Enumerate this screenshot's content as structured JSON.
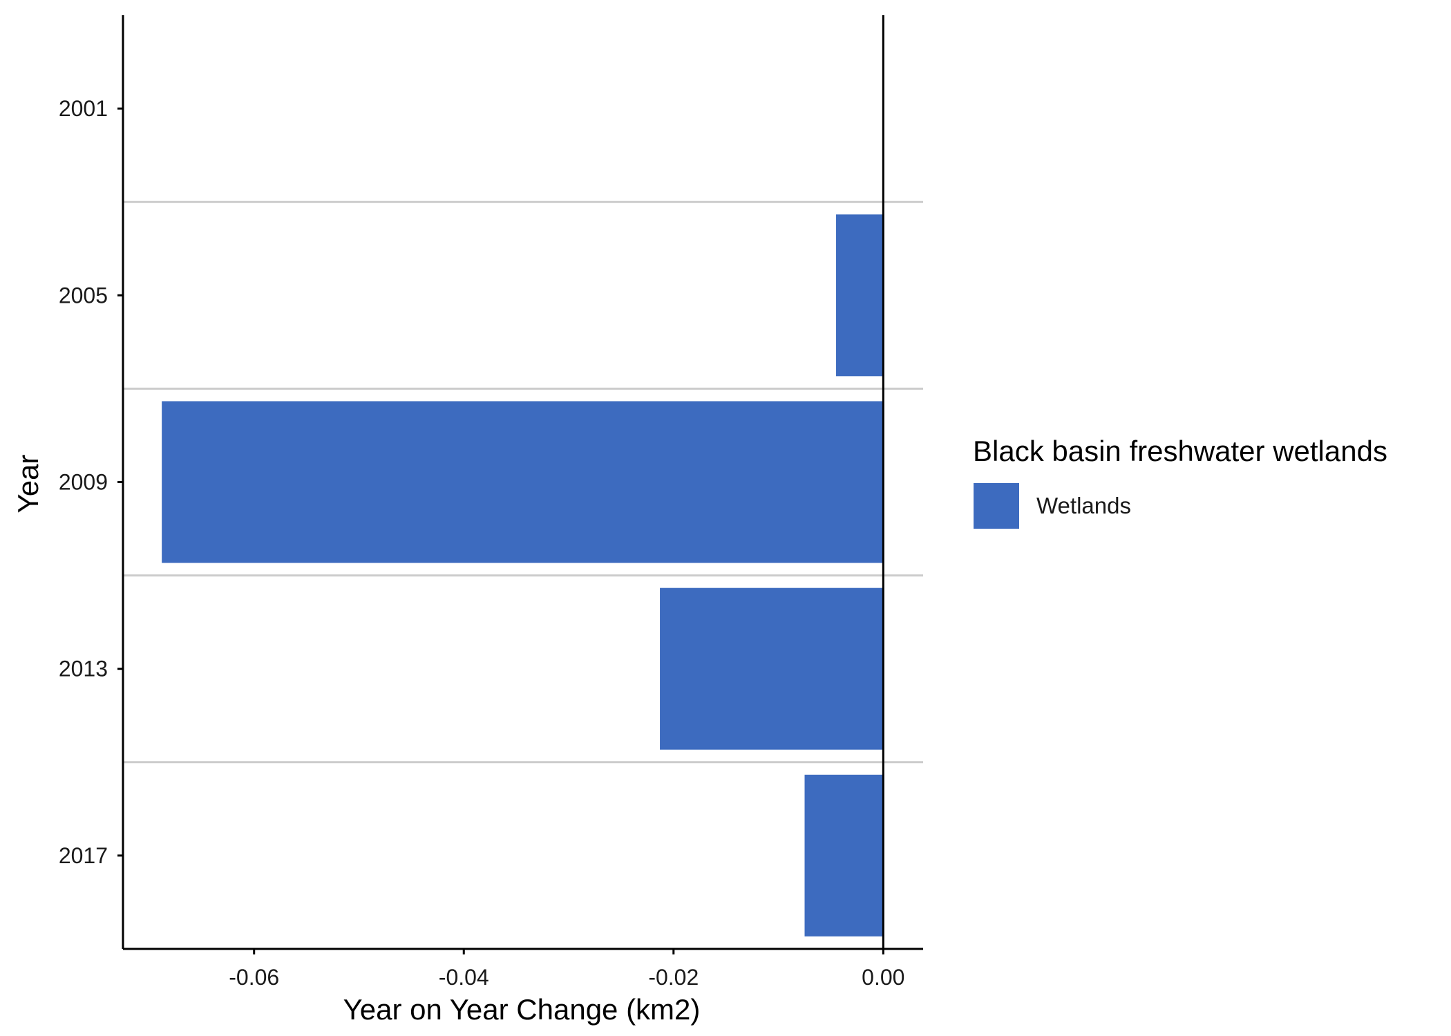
{
  "chart_data": {
    "type": "bar",
    "orientation": "horizontal",
    "categories": [
      "2001",
      "2005",
      "2009",
      "2013",
      "2017"
    ],
    "series": [
      {
        "name": "Wetlands",
        "values": [
          0,
          -0.0045,
          -0.0688,
          -0.0213,
          -0.0075
        ],
        "color": "#3d6bbf"
      }
    ],
    "xlabel": "Year on Year Change (km2)",
    "ylabel": "Year",
    "xlim": [
      -0.0725,
      0.0038
    ],
    "xticks": [
      -0.06,
      -0.04,
      -0.02,
      0.0
    ],
    "xtick_labels": [
      "-0.06",
      "-0.04",
      "-0.02",
      "0.00"
    ],
    "grid": "horizontal separators between categories",
    "zero_line": true,
    "legend": {
      "title": "Black basin freshwater wetlands",
      "placement": "right",
      "entries": [
        "Wetlands"
      ]
    }
  }
}
